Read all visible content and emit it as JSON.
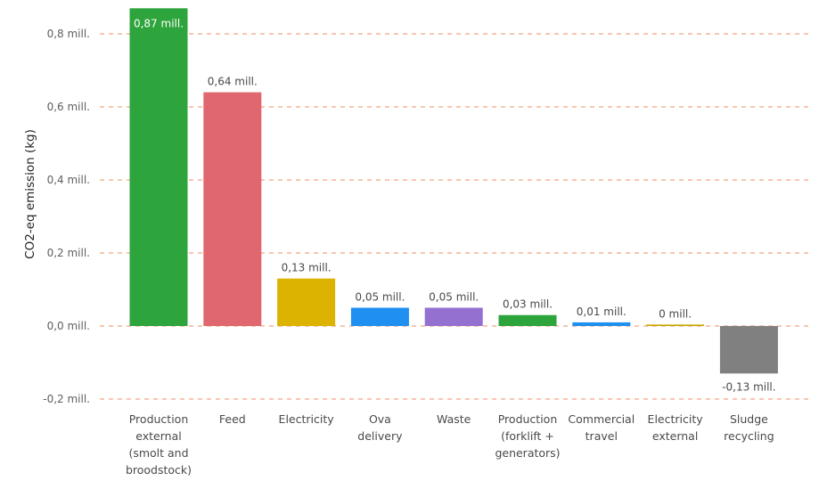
{
  "chart_data": {
    "type": "bar",
    "title": "",
    "xlabel": "",
    "ylabel": "CO2-eq emission (kg)",
    "ylim": [
      -0.2,
      0.87
    ],
    "yticks": [
      -0.2,
      0.0,
      0.2,
      0.4,
      0.6,
      0.8
    ],
    "ytick_labels": [
      "-0,2 mill.",
      "0,0 mill.",
      "0,2 mill.",
      "0,4 mill.",
      "0,6 mill.",
      "0,8 mill."
    ],
    "grid": true,
    "legend": "none",
    "categories": [
      [
        "Production",
        "external",
        "(smolt and",
        "broodstock)"
      ],
      [
        "Feed"
      ],
      [
        "Electricity"
      ],
      [
        "Ova",
        "delivery"
      ],
      [
        "Waste"
      ],
      [
        "Production",
        "(forklift +",
        "generators)"
      ],
      [
        "Commercial",
        "travel"
      ],
      [
        "Electricity",
        "external"
      ],
      [
        "Sludge",
        "recycling"
      ]
    ],
    "values": [
      0.87,
      0.64,
      0.13,
      0.05,
      0.05,
      0.03,
      0.01,
      0.004,
      -0.13
    ],
    "data_labels": [
      "0,87 mill.",
      "0,64 mill.",
      "0,13 mill.",
      "0,05 mill.",
      "0,05 mill.",
      "0,03 mill.",
      "0,01 mill.",
      "0 mill.",
      "-0,13 mill."
    ],
    "colors": [
      "#2ea43c",
      "#e0676f",
      "#dbb300",
      "#1f8ff0",
      "#9470d0",
      "#2ea43c",
      "#1f8ff0",
      "#c8a800",
      "#808080"
    ]
  }
}
